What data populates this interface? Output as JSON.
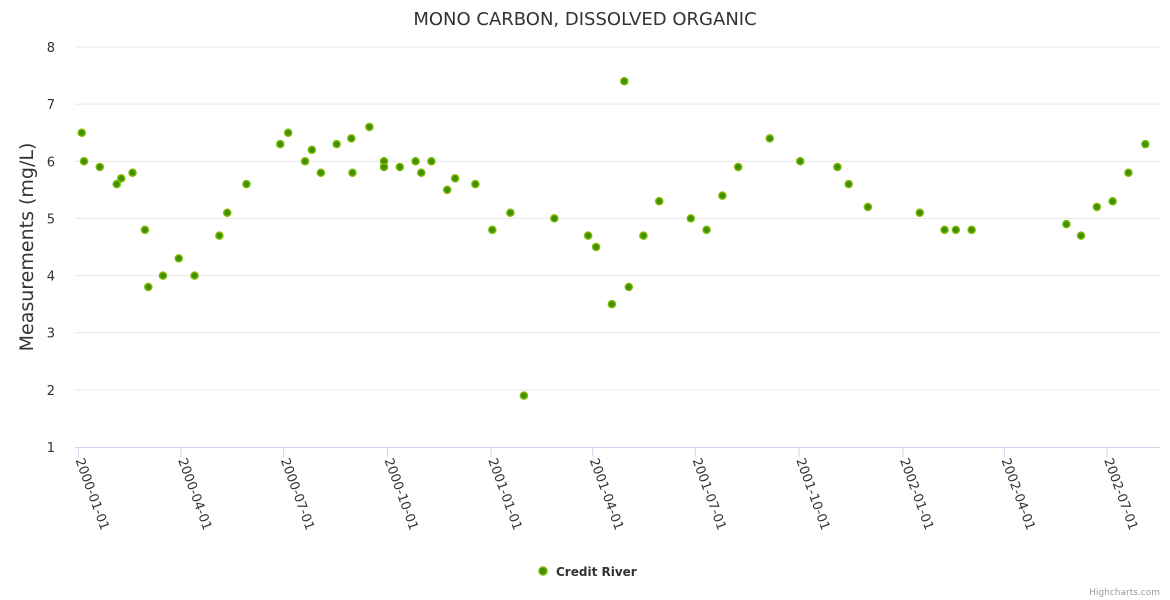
{
  "chart_data": {
    "type": "scatter",
    "title": "MONO CARBON, DISSOLVED ORGANIC",
    "xlabel": "",
    "ylabel": "Measurements (mg/L)",
    "ylim": [
      1,
      8
    ],
    "yticks": [
      "1",
      "2",
      "3",
      "4",
      "5",
      "6",
      "7",
      "8"
    ],
    "xlim": [
      "1999-12-29",
      "2002-08-17"
    ],
    "xticks": [
      "2000-01-01",
      "2000-04-01",
      "2000-07-01",
      "2000-10-01",
      "2001-01-01",
      "2001-04-01",
      "2001-07-01",
      "2001-10-01",
      "2002-01-01",
      "2002-04-01",
      "2002-07-01"
    ],
    "grid": true,
    "legend_position": "bottom-center",
    "series": [
      {
        "name": "Credit River",
        "color": "#3f8f00",
        "border_color": "#7ab800",
        "points": [
          [
            "2000-01-04",
            6.5
          ],
          [
            "2000-01-06",
            6.0
          ],
          [
            "2000-01-20",
            5.9
          ],
          [
            "2000-02-04",
            5.6
          ],
          [
            "2000-02-08",
            5.7
          ],
          [
            "2000-02-18",
            5.8
          ],
          [
            "2000-02-29",
            4.8
          ],
          [
            "2000-03-03",
            3.8
          ],
          [
            "2000-03-16",
            4.0
          ],
          [
            "2000-03-30",
            4.3
          ],
          [
            "2000-04-13",
            4.0
          ],
          [
            "2000-05-05",
            4.7
          ],
          [
            "2000-05-12",
            5.1
          ],
          [
            "2000-05-29",
            5.6
          ],
          [
            "2000-06-28",
            6.3
          ],
          [
            "2000-07-05",
            6.5
          ],
          [
            "2000-07-20",
            6.0
          ],
          [
            "2000-07-26",
            6.2
          ],
          [
            "2000-08-03",
            5.8
          ],
          [
            "2000-08-17",
            6.3
          ],
          [
            "2000-08-30",
            6.4
          ],
          [
            "2000-08-31",
            5.8
          ],
          [
            "2000-09-15",
            6.6
          ],
          [
            "2000-09-28",
            6.0
          ],
          [
            "2000-09-28",
            5.9
          ],
          [
            "2000-10-12",
            5.9
          ],
          [
            "2000-10-26",
            6.0
          ],
          [
            "2000-10-31",
            5.8
          ],
          [
            "2000-11-09",
            6.0
          ],
          [
            "2000-11-23",
            5.5
          ],
          [
            "2000-11-30",
            5.7
          ],
          [
            "2000-12-18",
            5.6
          ],
          [
            "2001-01-02",
            4.8
          ],
          [
            "2001-01-18",
            5.1
          ],
          [
            "2001-01-30",
            1.9
          ],
          [
            "2001-02-26",
            5.0
          ],
          [
            "2001-03-28",
            4.7
          ],
          [
            "2001-04-04",
            4.5
          ],
          [
            "2001-04-18",
            3.5
          ],
          [
            "2001-04-29",
            7.4
          ],
          [
            "2001-05-03",
            3.8
          ],
          [
            "2001-05-16",
            4.7
          ],
          [
            "2001-05-30",
            5.3
          ],
          [
            "2001-06-27",
            5.0
          ],
          [
            "2001-07-11",
            4.8
          ],
          [
            "2001-07-25",
            5.4
          ],
          [
            "2001-08-08",
            5.9
          ],
          [
            "2001-09-05",
            6.4
          ],
          [
            "2001-10-02",
            6.0
          ],
          [
            "2001-11-04",
            5.9
          ],
          [
            "2001-11-14",
            5.6
          ],
          [
            "2001-12-01",
            5.2
          ],
          [
            "2002-01-16",
            5.1
          ],
          [
            "2002-02-07",
            4.8
          ],
          [
            "2002-02-17",
            4.8
          ],
          [
            "2002-03-03",
            4.8
          ],
          [
            "2002-05-26",
            4.9
          ],
          [
            "2002-06-08",
            4.7
          ],
          [
            "2002-06-22",
            5.2
          ],
          [
            "2002-07-06",
            5.3
          ],
          [
            "2002-07-20",
            5.8
          ],
          [
            "2002-08-04",
            6.3
          ]
        ]
      }
    ]
  },
  "credits": "Highcharts.com"
}
